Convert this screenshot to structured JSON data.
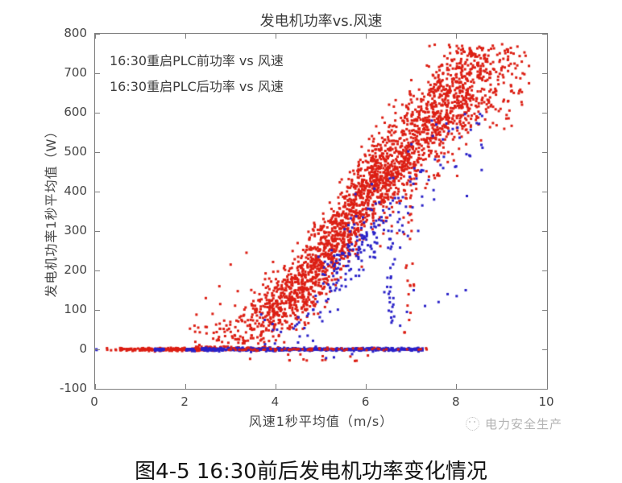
{
  "caption": {
    "text": "图4-5 16:30前后发电机功率变化情况"
  },
  "watermark": {
    "text": "电力安全生产",
    "icon": "smiley-logo",
    "color": "#b3b3b3"
  },
  "colors": {
    "before_series": "#dc1f14",
    "after_series": "#2a22c8",
    "axis": "#7e7e7e",
    "text": "#454545"
  },
  "chart_data": {
    "type": "scatter",
    "title": "发电机功率vs.风速",
    "xlabel": "风速1秒平均值（m/s）",
    "ylabel": "发电机功率1秒平均值（W）",
    "xlim": [
      0,
      10
    ],
    "ylim": [
      -100,
      800
    ],
    "xticks": [
      0,
      2,
      4,
      6,
      8,
      10
    ],
    "yticks": [
      -100,
      0,
      100,
      200,
      300,
      400,
      500,
      600,
      700,
      800
    ],
    "grid": false,
    "legend_position": "top-left",
    "seed": 42,
    "marker_px": 3,
    "series": [
      {
        "name": "before-restart",
        "label": "16:30重启PLC前功率 vs 风速",
        "color": "#dc1f14",
        "cloud": {
          "count": 2600,
          "x_range": [
            2.1,
            9.6
          ],
          "x_clusters": [
            {
              "weight": 0.42,
              "mean": 4.9,
              "std": 1.0
            },
            {
              "weight": 0.2,
              "mean": 6.3,
              "std": 0.6
            },
            {
              "weight": 0.26,
              "mean": 7.9,
              "std": 0.6
            },
            {
              "weight": 0.12,
              "min": 2.2,
              "max": 9.5
            }
          ],
          "trend": [
            [
              2.1,
              0
            ],
            [
              2.5,
              12
            ],
            [
              3,
              35
            ],
            [
              3.5,
              65
            ],
            [
              4,
              105
            ],
            [
              4.5,
              150
            ],
            [
              5,
              225
            ],
            [
              5.5,
              300
            ],
            [
              6,
              410
            ],
            [
              6.5,
              455
            ],
            [
              7,
              520
            ],
            [
              7.5,
              590
            ],
            [
              8,
              650
            ],
            [
              8.5,
              680
            ],
            [
              9,
              700
            ],
            [
              9.6,
              710
            ]
          ],
          "noise_base": 22,
          "noise_slope": 5.5,
          "y_max": 775
        },
        "streaks": [
          {
            "x": 6.97,
            "x_jitter": 0.06,
            "count": 45,
            "y_min": 20,
            "y_max": 640
          }
        ],
        "extra_points": [
          [
            2.45,
            130
          ],
          [
            2.75,
            160
          ],
          [
            3.0,
            215
          ],
          [
            2.2,
            60
          ],
          [
            3.35,
            245
          ],
          [
            2.6,
            90
          ]
        ],
        "zero_segments": [
          {
            "min": 0.25,
            "max": 0.5,
            "count": 5,
            "z": 0
          },
          {
            "min": 0.55,
            "max": 2.65,
            "count": 230,
            "z": 0
          },
          {
            "min": 2.7,
            "max": 7.3,
            "count": 70,
            "z": 2
          },
          {
            "min": 7.32,
            "max": 7.36,
            "count": 2,
            "z": 2
          }
        ],
        "below_zero": {
          "count": 14,
          "min": 3.3,
          "max": 6.3,
          "y_min": -35,
          "y_max": -12
        }
      },
      {
        "name": "after-restart",
        "label": "16:30重启PLC后功率 vs 风速",
        "color": "#2a22c8",
        "cloud": {
          "count": 235,
          "x_range": [
            3.4,
            8.7
          ],
          "x_clusters": [
            {
              "weight": 0.55,
              "mean": 5.9,
              "std": 0.55
            },
            {
              "weight": 0.45,
              "min": 3.6,
              "max": 8.6
            }
          ],
          "trend": [
            [
              3.4,
              5
            ],
            [
              4,
              30
            ],
            [
              4.5,
              60
            ],
            [
              5,
              130
            ],
            [
              5.5,
              220
            ],
            [
              6,
              280
            ],
            [
              6.5,
              310
            ],
            [
              7,
              380
            ],
            [
              7.5,
              470
            ],
            [
              8.6,
              560
            ]
          ],
          "noise_base": 20,
          "noise_slope": 5,
          "y_max": 600
        },
        "streaks": [
          {
            "x": 6.55,
            "x_jitter": 0.05,
            "count": 22,
            "y_min": 60,
            "y_max": 300
          }
        ],
        "extra_points": [
          [
            7.8,
            140
          ],
          [
            8.0,
            135
          ],
          [
            8.2,
            150
          ],
          [
            7.6,
            120
          ],
          [
            7.3,
            110
          ],
          [
            6.9,
            95
          ],
          [
            7.05,
            150
          ],
          [
            6.75,
            60
          ],
          [
            7.5,
            380
          ],
          [
            7.2,
            450
          ],
          [
            7.0,
            520
          ],
          [
            7.55,
            570
          ],
          [
            8.3,
            490
          ],
          [
            7.45,
            580
          ],
          [
            6.4,
            145
          ],
          [
            6.6,
            130
          ]
        ],
        "zero_segments": [
          {
            "min": 0.0,
            "max": 0.04,
            "count": 2,
            "z": 1
          },
          {
            "min": 1.32,
            "max": 1.52,
            "count": 28,
            "z": 1
          },
          {
            "min": 2.02,
            "max": 2.22,
            "count": 22,
            "z": 1
          },
          {
            "min": 2.35,
            "max": 7.25,
            "count": 560,
            "z": 1
          }
        ],
        "below_zero": {
          "count": 3,
          "min": 4.7,
          "max": 6.6,
          "y_min": -32,
          "y_max": -12
        }
      }
    ]
  }
}
